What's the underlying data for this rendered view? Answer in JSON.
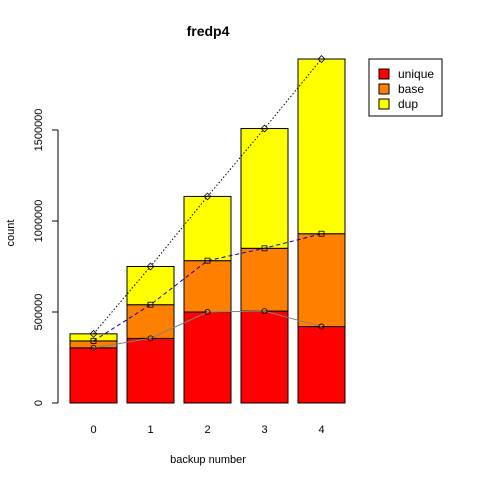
{
  "chart_data": {
    "type": "bar",
    "stacked": true,
    "title": "fredp4",
    "xlabel": "backup number",
    "ylabel": "count",
    "categories": [
      "0",
      "1",
      "2",
      "3",
      "4"
    ],
    "series": [
      {
        "name": "unique",
        "color": "#ff0000",
        "values": [
          303000,
          355000,
          500000,
          505000,
          420000
        ]
      },
      {
        "name": "base",
        "color": "#ff8000",
        "values": [
          38000,
          185000,
          282000,
          345000,
          510000
        ]
      },
      {
        "name": "dup",
        "color": "#ffff00",
        "values": [
          39000,
          210000,
          353000,
          658000,
          960000
        ]
      }
    ],
    "overlay_lines": [
      {
        "series": "unique",
        "marker": "circle",
        "line_style": "solid",
        "line_color": "#808080",
        "values": [
          303000,
          355000,
          500000,
          505000,
          420000
        ]
      },
      {
        "series": "base",
        "marker": "square",
        "line_style": "dashed",
        "line_color": "#0000cd",
        "values": [
          341000,
          540000,
          782000,
          850000,
          930000
        ]
      },
      {
        "series": "dup",
        "marker": "diamond",
        "line_style": "dotted",
        "line_color": "#000000",
        "values": [
          380000,
          750000,
          1135000,
          1508000,
          1890000
        ]
      }
    ],
    "yticks": [
      0,
      500000,
      1000000,
      1500000
    ],
    "ytick_labels": [
      "0",
      "500000",
      "1000000",
      "1500000"
    ],
    "ylim": [
      0,
      1890000
    ],
    "legend_position": "top-right",
    "grid": false
  }
}
